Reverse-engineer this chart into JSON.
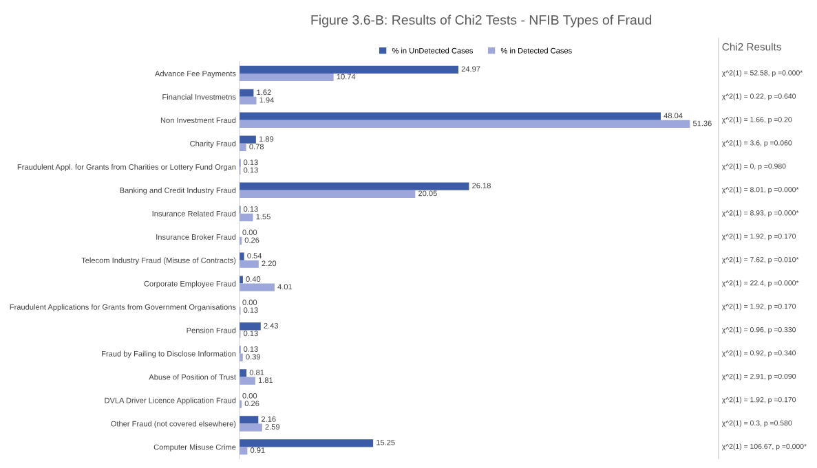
{
  "chart_data": {
    "type": "bar",
    "orientation": "horizontal",
    "title": "Figure 3.6-B: Results of Chi2 Tests - NFIB Types of Fraud",
    "legend": "top",
    "grid": false,
    "tick_labels": "y",
    "categories": [
      "Advance Fee Payments",
      "Financial Investmetns",
      "Non Investment Fraud",
      "Charity Fraud",
      "Fraudulent Appl. for Grants from Charities or Lottery Fund Organ",
      "Banking and Credit Industry Fraud",
      "Insurance Related Fraud",
      "Insurance Broker Fraud",
      "Telecom Industry Fraud (Misuse of Contracts)",
      "Corporate Employee Fraud",
      "Fraudulent Applications for Grants from Government Organisations",
      "Pension Fraud",
      "Fraud by Failing to Disclose Information",
      "Abuse of Position of Trust",
      "DVLA Driver Licence Application Fraud",
      "Other Fraud (not covered elsewhere)",
      "Computer Misuse Crime"
    ],
    "series": [
      {
        "name": "% in UnDetected Cases",
        "color": "#3d5ca8",
        "values": [
          24.97,
          1.62,
          48.04,
          1.89,
          0.13,
          26.18,
          0.13,
          0.0,
          0.54,
          0.4,
          0.0,
          2.43,
          0.13,
          0.81,
          0.0,
          2.16,
          15.25
        ],
        "value_labels": [
          "24.97",
          "1.62",
          "48.04",
          "1.89",
          "0.13",
          "26.18",
          "0.13",
          "0.00",
          "0.54",
          "0.40",
          "0.00",
          "2.43",
          "0.13",
          "0.81",
          "0.00",
          "2.16",
          "15.25"
        ]
      },
      {
        "name": "% in Detected Cases",
        "color": "#9ea7dc",
        "values": [
          10.74,
          1.94,
          51.36,
          0.78,
          0.13,
          20.05,
          1.55,
          0.26,
          2.2,
          4.01,
          0.13,
          0.13,
          0.39,
          1.81,
          0.26,
          2.59,
          0.91
        ],
        "value_labels": [
          "10.74",
          "1.94",
          "51.36",
          "0.78",
          "0.13",
          "20.05",
          "1.55",
          "0.26",
          "2.20",
          "4.01",
          "0.13",
          "0.13",
          "0.39",
          "1.81",
          "0.26",
          "2.59",
          "0.91"
        ]
      }
    ],
    "annotations": [
      "Chi2 Results",
      "χ^2(1) = 52.58, p =0.000*",
      "χ^2(1) = 0.22, p =0.640",
      "χ^2(1) = 1.66, p =0.20",
      "χ^2(1) = 3.6, p =0.060",
      "χ^2(1) = 0, p =0.980",
      "χ^2(1) = 8.01, p =0.000*",
      "χ^2(1) = 8.93, p =0.000*",
      "χ^2(1) = 1.92, p =0.170",
      "χ^2(1) = 7.62, p =0.010*",
      "χ^2(1) = 22.4, p =0.000*",
      "χ^2(1) = 1.92, p =0.170",
      "χ^2(1) = 0.96, p =0.330",
      "χ^2(1) = 0.92, p =0.340",
      "χ^2(1) = 2.91, p =0.090",
      "χ^2(1) = 1.92, p =0.170",
      "χ^2(1) = 0.3, p =0.580",
      "χ^2(1) = 106.67, p =0.000*"
    ]
  }
}
